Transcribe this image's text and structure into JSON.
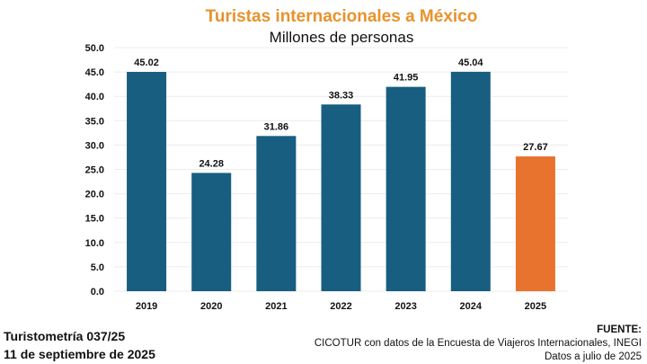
{
  "chart_data": {
    "type": "bar",
    "title": "Turistas internacionales a México",
    "subtitle": "Millones de personas",
    "categories": [
      "2019",
      "2020",
      "2021",
      "2022",
      "2023",
      "2024",
      "2025"
    ],
    "values": [
      45.02,
      24.28,
      31.86,
      38.33,
      41.95,
      45.04,
      27.67
    ],
    "data_labels": [
      "45.02",
      "24.28",
      "31.86",
      "38.33",
      "41.95",
      "45.04",
      "27.67"
    ],
    "ylim": [
      0,
      50
    ],
    "yticks": [
      "0.0",
      "5.0",
      "10.0",
      "15.0",
      "20.0",
      "25.0",
      "30.0",
      "35.0",
      "40.0",
      "45.0",
      "50.0"
    ],
    "grid": true,
    "colors": {
      "default": "#175E80",
      "highlight": "#E8732F",
      "title": "#E8922C"
    },
    "highlight_index": 6
  },
  "footer": {
    "report": "Turistometría 037/25",
    "date": "11 de septiembre de 2025",
    "source_label": "FUENTE:",
    "source": "CICOTUR con datos de la Encuesta de Viajeros Internacionales, INEGI",
    "note": "Datos a julio de 2025"
  }
}
